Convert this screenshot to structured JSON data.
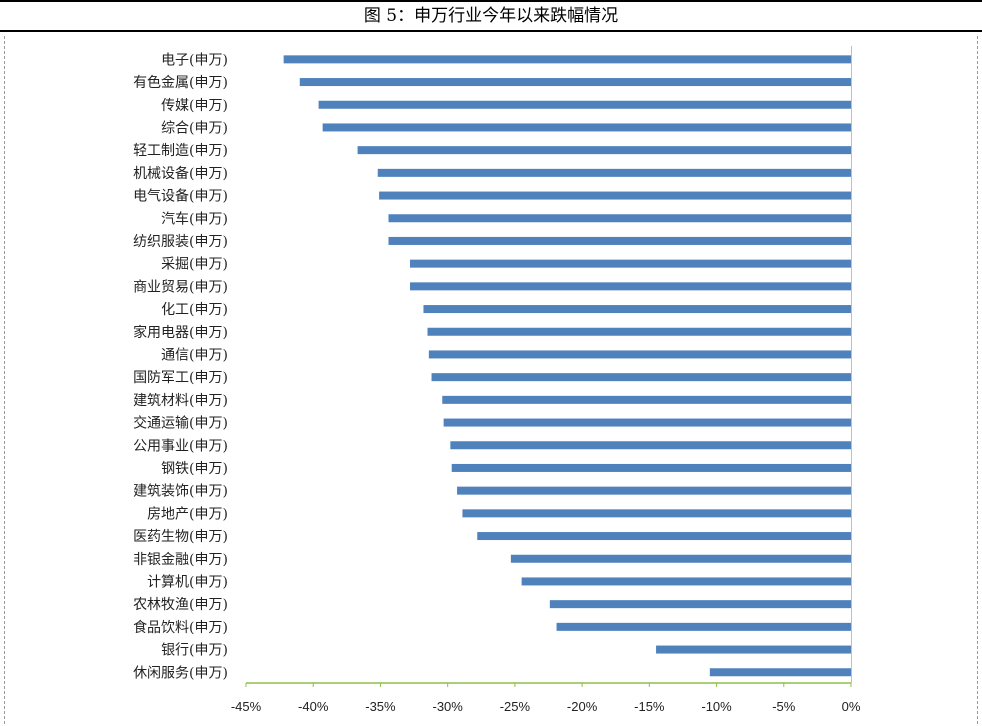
{
  "header": {
    "title": "图 5：申万行业今年以来跌幅情况"
  },
  "colors": {
    "bar": "#4f81bd",
    "axis": "#8fbf4a"
  },
  "chart_data": {
    "type": "bar",
    "orientation": "horizontal",
    "title": "",
    "xlabel": "",
    "ylabel": "",
    "xlim": [
      -45,
      0
    ],
    "x_ticks": [
      "-45%",
      "-40%",
      "-35%",
      "-30%",
      "-25%",
      "-20%",
      "-15%",
      "-10%",
      "-5%",
      "0%"
    ],
    "grid": false,
    "categories": [
      "电子(申万)",
      "有色金属(申万)",
      "传媒(申万)",
      "综合(申万)",
      "轻工制造(申万)",
      "机械设备(申万)",
      "电气设备(申万)",
      "汽车(申万)",
      "纺织服装(申万)",
      "采掘(申万)",
      "商业贸易(申万)",
      "化工(申万)",
      "家用电器(申万)",
      "通信(申万)",
      "国防军工(申万)",
      "建筑材料(申万)",
      "交通运输(申万)",
      "公用事业(申万)",
      "钢铁(申万)",
      "建筑装饰(申万)",
      "房地产(申万)",
      "医药生物(申万)",
      "非银金融(申万)",
      "计算机(申万)",
      "农林牧渔(申万)",
      "食品饮料(申万)",
      "银行(申万)",
      "休闲服务(申万)"
    ],
    "values": [
      -42.2,
      -41.0,
      -39.6,
      -39.3,
      -36.7,
      -35.2,
      -35.1,
      -34.4,
      -34.4,
      -32.8,
      -32.8,
      -31.8,
      -31.5,
      -31.4,
      -31.2,
      -30.4,
      -30.3,
      -29.8,
      -29.7,
      -29.3,
      -28.9,
      -27.8,
      -25.3,
      -24.5,
      -22.4,
      -21.9,
      -14.5,
      -10.5
    ]
  }
}
